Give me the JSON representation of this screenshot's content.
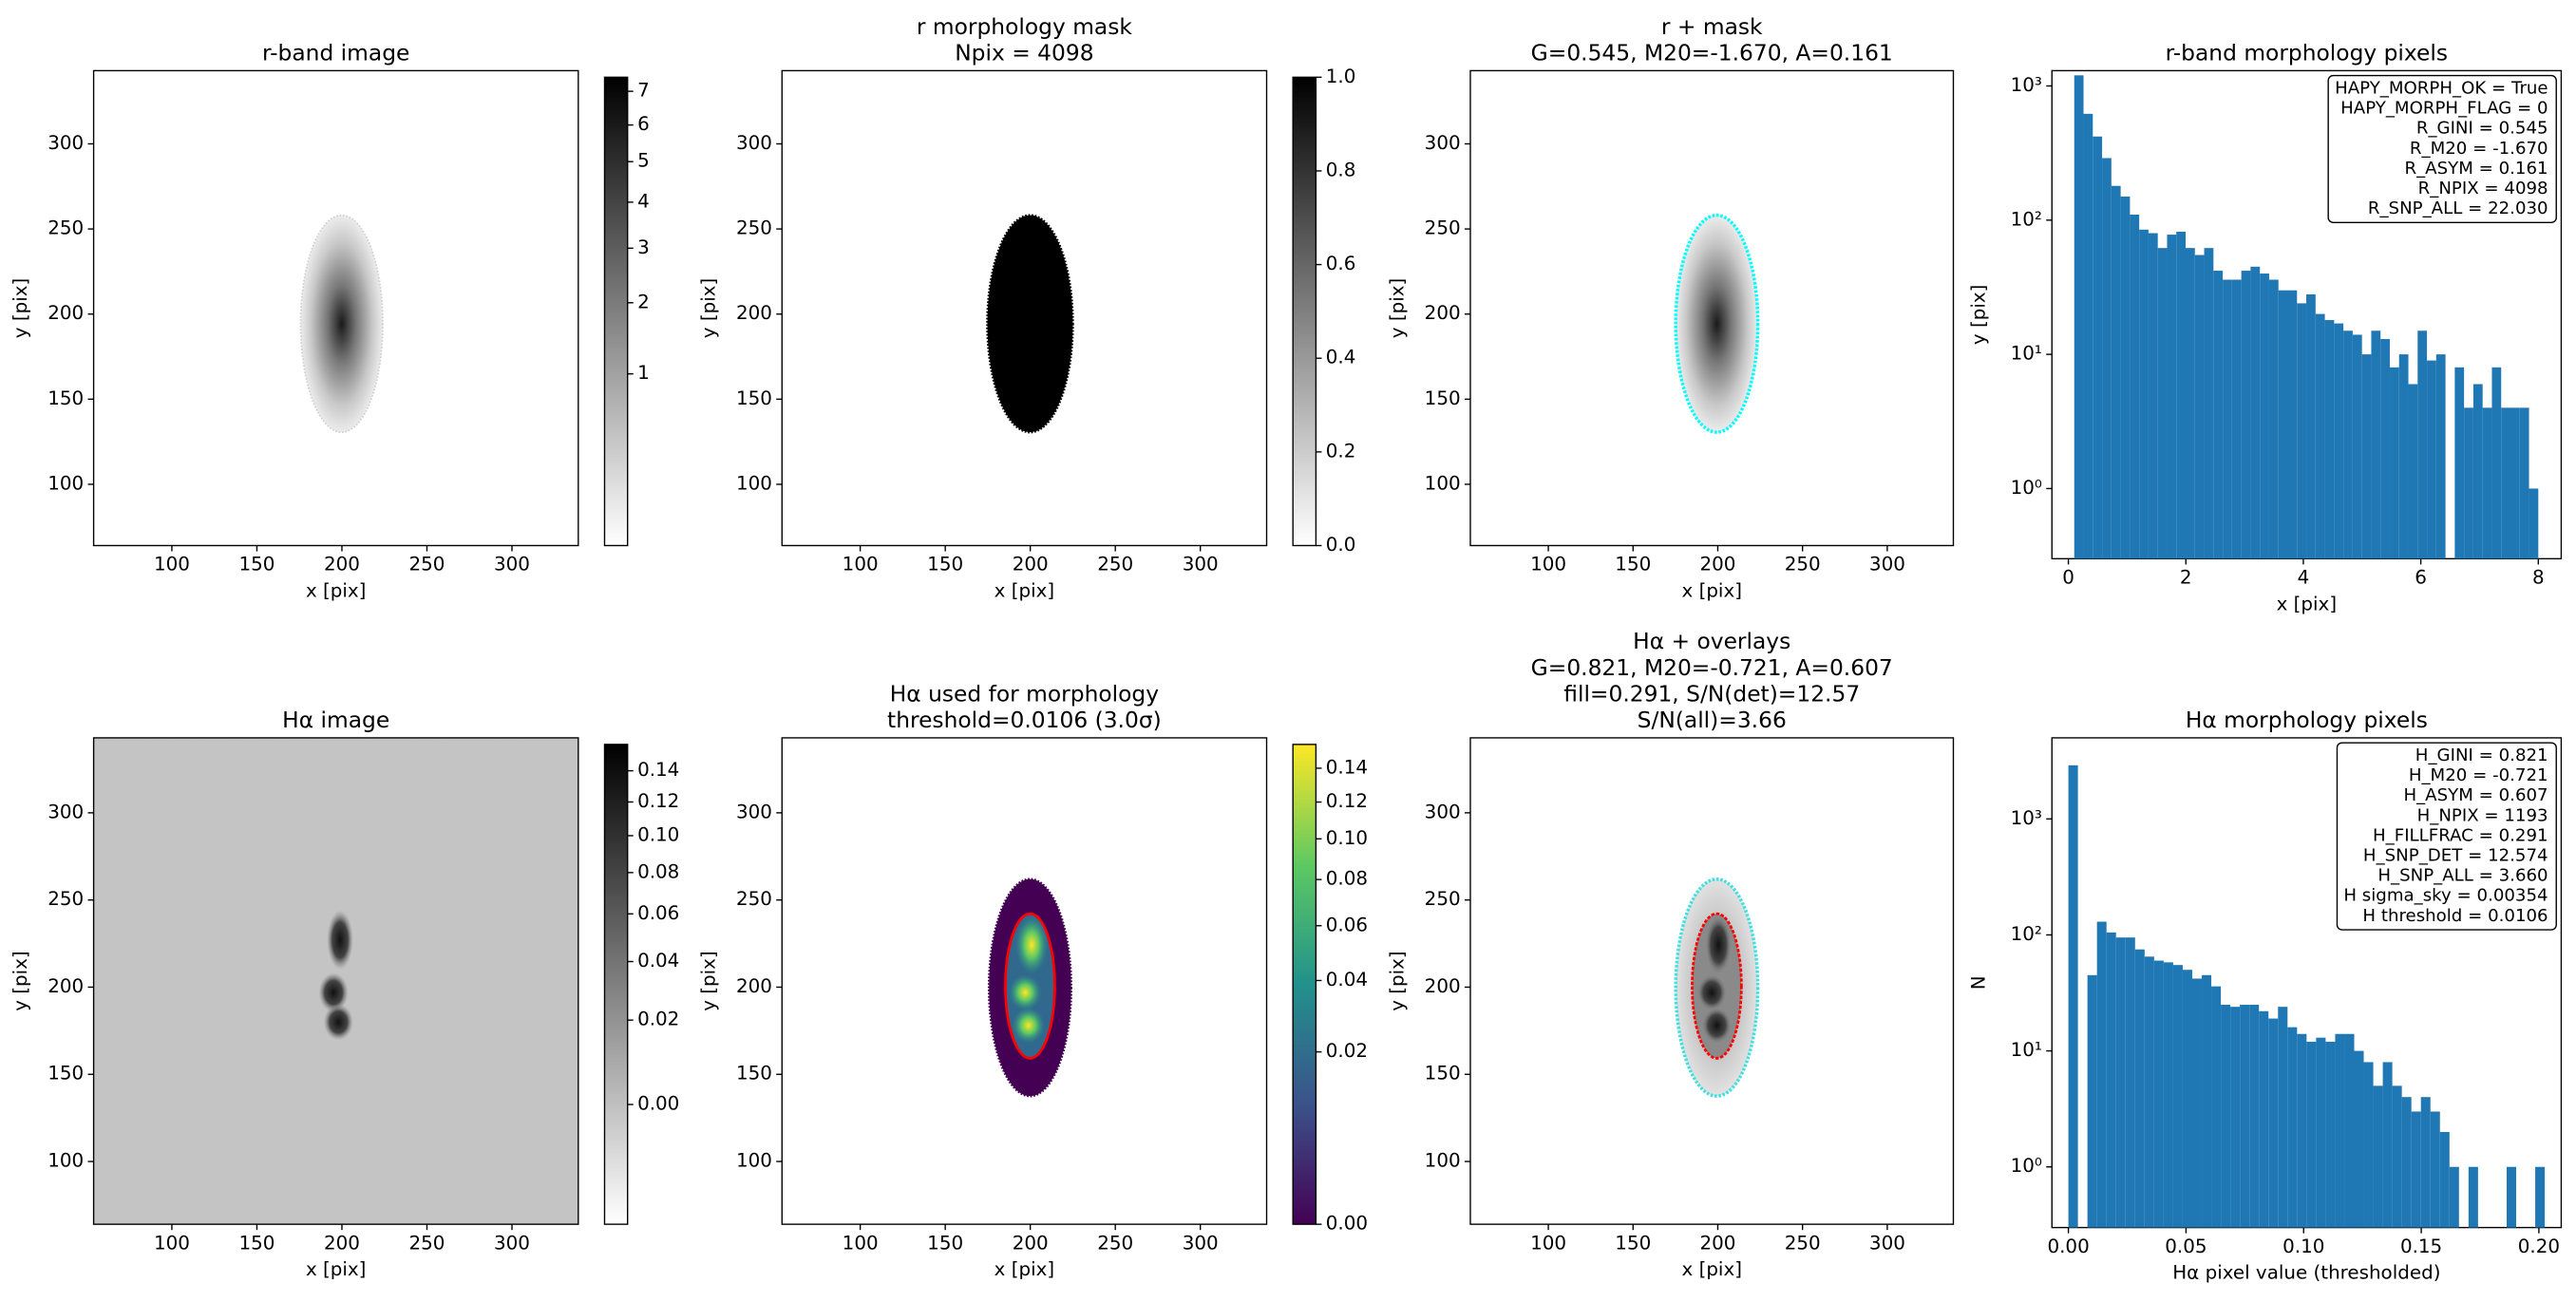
{
  "chart_data": [
    {
      "type": "image",
      "title": [
        "r-band image"
      ],
      "xlabel": "x [pix]",
      "ylabel": "y [pix]",
      "xlim": [
        54,
        339
      ],
      "ylim": [
        64,
        343
      ],
      "xticks": [
        100,
        150,
        200,
        250,
        300
      ],
      "yticks": [
        100,
        150,
        200,
        250,
        300
      ],
      "colorbar": {
        "cmap": "gray_r",
        "scale": "sqrt",
        "lim": [
          0,
          7.44
        ],
        "ticks": [
          1,
          2,
          3,
          4,
          5,
          6,
          7
        ]
      }
    },
    {
      "type": "image",
      "title": [
        "r morphology mask",
        "Npix = 4098"
      ],
      "xlabel": "x [pix]",
      "ylabel": "y [pix]",
      "xlim": [
        54,
        339
      ],
      "ylim": [
        64,
        343
      ],
      "xticks": [
        100,
        150,
        200,
        250,
        300
      ],
      "yticks": [
        100,
        150,
        200,
        250,
        300
      ],
      "colorbar": {
        "cmap": "gray_r",
        "scale": "linear",
        "lim": [
          0,
          1
        ],
        "ticks": [
          {
            "value": 0,
            "label": "0.0"
          },
          0.2,
          0.4,
          0.6,
          0.8,
          {
            "value": 1,
            "label": "1.0"
          }
        ]
      }
    },
    {
      "type": "image",
      "title": [
        "r + mask",
        "G=0.545, M20=-1.670, A=0.161"
      ],
      "xlabel": "x [pix]",
      "ylabel": "y [pix]",
      "xlim": [
        54,
        339
      ],
      "ylim": [
        64,
        343
      ],
      "xticks": [
        100,
        150,
        200,
        250,
        300
      ],
      "yticks": [
        100,
        150,
        200,
        250,
        300
      ]
    },
    {
      "type": "histogram",
      "title": [
        "r-band morphology pixels"
      ],
      "xlabel": "x [pix]",
      "ylabel": "y [pix]",
      "color": "#1f77b4",
      "yscale": "log",
      "xlim": [
        -0.28,
        8.39
      ],
      "ylim": [
        0.3,
        1300
      ],
      "xticks": [
        0,
        2,
        4,
        6,
        8
      ],
      "yticks": [
        {
          "value": 1,
          "label": "10⁰"
        },
        {
          "value": 10,
          "label": "10¹"
        },
        {
          "value": 100,
          "label": "10²"
        },
        {
          "value": 1000,
          "label": "10³"
        }
      ],
      "bins": [
        0.1,
        0.258,
        0.416,
        0.574,
        0.732,
        0.89,
        1.048,
        1.206,
        1.364,
        1.522,
        1.68,
        1.838,
        1.996,
        2.154,
        2.312,
        2.47,
        2.628,
        2.786,
        2.944,
        3.102,
        3.26,
        3.418,
        3.576,
        3.734,
        3.892,
        4.05,
        4.208,
        4.366,
        4.524,
        4.682,
        4.84,
        4.998,
        5.156,
        5.314,
        5.472,
        5.63,
        5.788,
        5.946,
        6.104,
        6.262,
        6.42,
        6.578,
        6.736,
        6.894,
        7.052,
        7.21,
        7.368,
        7.526,
        7.684,
        7.842,
        8.0
      ],
      "values": [
        1200,
        620,
        420,
        290,
        180,
        150,
        110,
        85,
        80,
        62,
        78,
        82,
        62,
        55,
        62,
        42,
        36,
        36,
        42,
        45,
        40,
        36,
        30,
        30,
        24,
        28,
        20,
        18,
        17,
        15,
        14,
        10,
        15,
        13,
        8,
        10,
        6,
        15,
        9,
        10,
        0,
        8,
        4,
        6,
        4,
        8,
        4,
        4,
        4,
        1
      ],
      "annotation": [
        "HAPY_MORPH_OK = True",
        "HAPY_MORPH_FLAG = 0",
        "R_GINI = 0.545",
        "R_M20 = -1.670",
        "R_ASYM = 0.161",
        "R_NPIX = 4098",
        "R_SNP_ALL = 22.030"
      ]
    },
    {
      "type": "image",
      "title": [
        "Hα image"
      ],
      "xlabel": "x [pix]",
      "ylabel": "y [pix]",
      "xlim": [
        54,
        339
      ],
      "ylim": [
        64,
        343
      ],
      "xticks": [
        100,
        150,
        200,
        250,
        300
      ],
      "yticks": [
        100,
        150,
        200,
        250,
        300
      ],
      "colorbar": {
        "cmap": "gray_r",
        "scale": "sqrt",
        "lim": [
          -0.0105,
          0.158
        ],
        "ticks": [
          {
            "value": 0,
            "label": "0.00"
          },
          0.02,
          0.04,
          0.06,
          0.08,
          {
            "value": 0.1,
            "label": "0.10"
          },
          0.12,
          0.14
        ]
      }
    },
    {
      "type": "image",
      "title": [
        "Hα used for morphology",
        "threshold=0.0106 (3.0σ)"
      ],
      "xlabel": "x [pix]",
      "ylabel": "y [pix]",
      "xlim": [
        54,
        339
      ],
      "ylim": [
        64,
        343
      ],
      "xticks": [
        100,
        150,
        200,
        250,
        300
      ],
      "yticks": [
        100,
        150,
        200,
        250,
        300
      ],
      "colorbar": {
        "cmap": "viridis",
        "scale": "sqrt",
        "lim": [
          0,
          0.155
        ],
        "ticks": [
          {
            "value": 0,
            "label": "0.00"
          },
          0.02,
          0.04,
          0.06,
          0.08,
          {
            "value": 0.1,
            "label": "0.10"
          },
          0.12,
          0.14
        ]
      }
    },
    {
      "type": "image",
      "title": [
        "Hα + overlays",
        "G=0.821, M20=-0.721, A=0.607",
        "fill=0.291, S/N(det)=12.57",
        "S/N(all)=3.66"
      ],
      "xlabel": "x [pix]",
      "ylabel": "y [pix]",
      "xlim": [
        54,
        339
      ],
      "ylim": [
        64,
        343
      ],
      "xticks": [
        100,
        150,
        200,
        250,
        300
      ],
      "yticks": [
        100,
        150,
        200,
        250,
        300
      ]
    },
    {
      "type": "histogram",
      "title": [
        "Hα morphology pixels"
      ],
      "xlabel": "Hα pixel value (thresholded)",
      "ylabel": "N",
      "color": "#1f77b4",
      "yscale": "log",
      "xlim": [
        -0.007,
        0.2095
      ],
      "ylim": [
        0.3,
        5000
      ],
      "xticks": [
        {
          "value": 0,
          "label": "0.00"
        },
        0.05,
        {
          "value": 0.1,
          "label": "0.10"
        },
        0.15,
        {
          "value": 0.2,
          "label": "0.20"
        }
      ],
      "yticks": [
        {
          "value": 1,
          "label": "10⁰"
        },
        {
          "value": 10,
          "label": "10¹"
        },
        {
          "value": 100,
          "label": "10²"
        },
        {
          "value": 1000,
          "label": "10³"
        }
      ],
      "bins": [
        0,
        0.00405,
        0.0081,
        0.01215,
        0.0162,
        0.02025,
        0.0243,
        0.02835,
        0.0324,
        0.03645,
        0.0405,
        0.04455,
        0.0486,
        0.05265,
        0.0567,
        0.06075,
        0.0648,
        0.06885,
        0.0729,
        0.07695,
        0.081,
        0.08505,
        0.0891,
        0.09315,
        0.0972,
        0.10125,
        0.1053,
        0.10935,
        0.1134,
        0.11745,
        0.1215,
        0.12555,
        0.1296,
        0.13365,
        0.1377,
        0.14175,
        0.1458,
        0.14985,
        0.1539,
        0.15795,
        0.162,
        0.16605,
        0.1701,
        0.17415,
        0.1782,
        0.18225,
        0.1863,
        0.19035,
        0.1944,
        0.19845,
        0.2025
      ],
      "values": [
        2900,
        0,
        45,
        130,
        105,
        95,
        95,
        75,
        65,
        60,
        58,
        55,
        50,
        42,
        45,
        36,
        25,
        24,
        25,
        25,
        22,
        19,
        24,
        16,
        14,
        12,
        13,
        12,
        14,
        14,
        10,
        8,
        5,
        8,
        5,
        4,
        3,
        4,
        3,
        2,
        1,
        0,
        1,
        0,
        0,
        0,
        1,
        0,
        0,
        1
      ],
      "annotation": [
        "H_GINI = 0.821",
        "H_M20 = -0.721",
        "H_ASYM = 0.607",
        "H_NPIX = 1193",
        "H_FILLFRAC = 0.291",
        "H_SNP_DET = 12.574",
        "H_SNP_ALL = 3.660",
        "H sigma_sky = 0.00354",
        "H threshold = 0.0106"
      ]
    }
  ]
}
